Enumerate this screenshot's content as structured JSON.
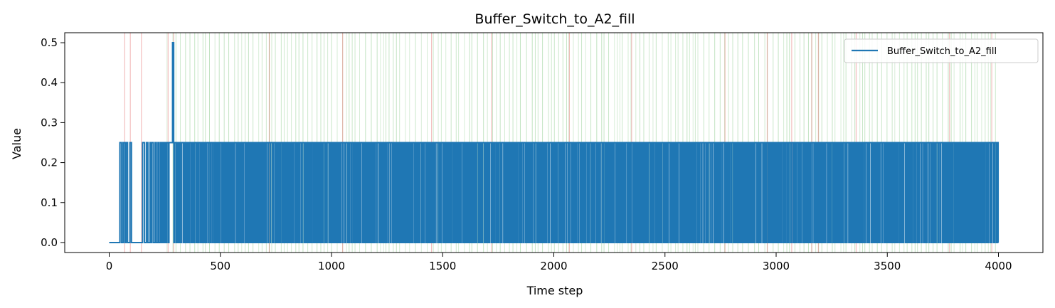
{
  "chart_data": {
    "type": "line",
    "title": "Buffer_Switch_to_A2_fill",
    "xlabel": "Time step",
    "ylabel": "Value",
    "xlim": [
      -200,
      4200
    ],
    "ylim": [
      -0.025,
      0.525
    ],
    "xticks": [
      0,
      500,
      1000,
      1500,
      2000,
      2500,
      3000,
      3500,
      4000
    ],
    "yticks": [
      0.0,
      0.1,
      0.2,
      0.3,
      0.4,
      0.5
    ],
    "xtick_labels": [
      "0",
      "500",
      "1000",
      "1500",
      "2000",
      "2500",
      "3000",
      "3500",
      "4000"
    ],
    "ytick_labels": [
      "0.0",
      "0.1",
      "0.2",
      "0.3",
      "0.4",
      "0.5"
    ],
    "grid": false,
    "legend": {
      "position": "top-right",
      "entries": [
        "Buffer_Switch_to_A2_fill"
      ]
    },
    "series": [
      {
        "name": "Buffer_Switch_to_A2_fill",
        "color": "#1f77b4",
        "x_range": [
          0,
          4000
        ],
        "levels": [
          0.0,
          0.25,
          0.5
        ],
        "segments": [
          {
            "x": [
              0,
              48
            ],
            "value": 0.0
          },
          {
            "x": [
              48,
              100
            ],
            "value": "alternating 0.0 / 0.25"
          },
          {
            "x": [
              100,
              150
            ],
            "value": 0.0
          },
          {
            "x": [
              150,
              270
            ],
            "value": "alternating 0.0 / 0.25"
          },
          {
            "x": [
              270,
              285
            ],
            "value": 0.25
          },
          {
            "x": [
              285,
              290
            ],
            "value": 0.5
          },
          {
            "x": [
              290,
              4000
            ],
            "value": "rapid alternating 0.0 / 0.25"
          }
        ]
      }
    ],
    "event_lines": {
      "green_color": "#2ca02c",
      "red_color": "#d62728",
      "green_range": [
        260,
        4000
      ],
      "red_approx_x": [
        70,
        95,
        145,
        265,
        290,
        720,
        1050,
        1450,
        1720,
        2070,
        2350,
        2770,
        2960,
        3070,
        3160,
        3190,
        3360,
        3780,
        3970
      ]
    }
  }
}
